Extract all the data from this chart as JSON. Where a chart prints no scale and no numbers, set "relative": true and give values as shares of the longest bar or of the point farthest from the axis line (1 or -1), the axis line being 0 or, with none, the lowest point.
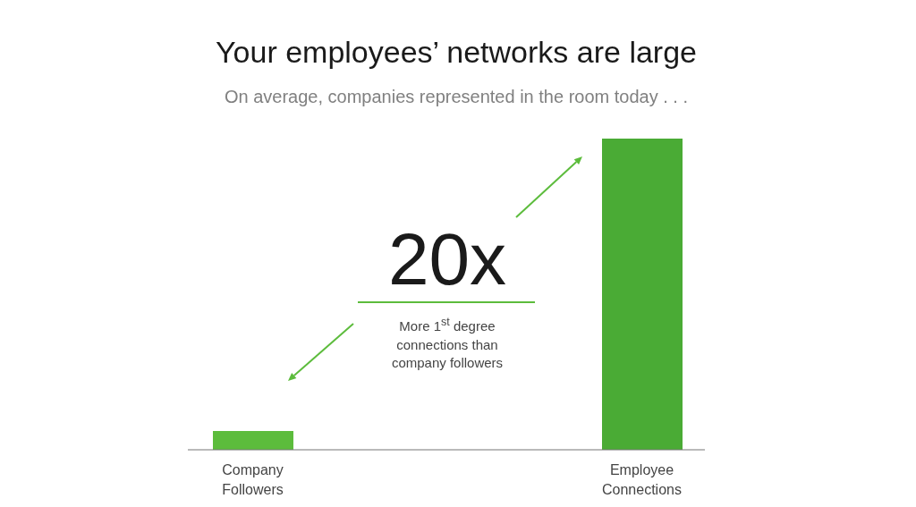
{
  "chart_data": {
    "type": "bar",
    "title": "Your employees’ networks are large",
    "subtitle": "On average, companies represented in the room today . . .",
    "categories": [
      "Company Followers",
      "Employee Connections"
    ],
    "values": [
      0.06,
      1
    ],
    "colors": [
      "#5cbc3c",
      "#4aab35"
    ],
    "relative": true,
    "annotations": [
      "20x",
      "More 1$^{st}$ degree connections than company followers"
    ]
  }
}
